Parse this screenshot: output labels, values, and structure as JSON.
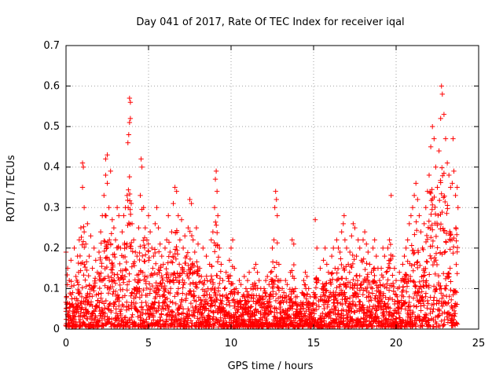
{
  "chart_data": {
    "type": "scatter",
    "title": "Day 041 of 2017, Rate Of TEC Index for receiver iqal",
    "xlabel": "GPS time / hours",
    "ylabel": "ROTI / TECUs",
    "xlim": [
      0,
      25
    ],
    "ylim": [
      0,
      0.7
    ],
    "xticks": [
      0,
      5,
      10,
      15,
      20,
      25
    ],
    "yticks": [
      0,
      0.1,
      0.2,
      0.3,
      0.4,
      0.5,
      0.6,
      0.7
    ],
    "xtick_labels": [
      "0",
      "5",
      "10",
      "15",
      "20",
      "25"
    ],
    "ytick_labels": [
      "0",
      "0.1",
      "0.2",
      "0.3",
      "0.4",
      "0.5",
      "0.6",
      "0.7"
    ],
    "grid": true,
    "marker": "plus",
    "series_color": "#ff0000",
    "points": [
      [
        0.0,
        0.19
      ],
      [
        0.1,
        0.15
      ],
      [
        0.2,
        0.12
      ],
      [
        0.3,
        0.17
      ],
      [
        0.4,
        0.09
      ],
      [
        0.5,
        0.2
      ],
      [
        0.6,
        0.13
      ],
      [
        0.7,
        0.18
      ],
      [
        0.8,
        0.22
      ],
      [
        0.9,
        0.25
      ],
      [
        1.0,
        0.35
      ],
      [
        1.0,
        0.41
      ],
      [
        1.05,
        0.4
      ],
      [
        1.1,
        0.3
      ],
      [
        1.1,
        0.24
      ],
      [
        1.2,
        0.21
      ],
      [
        1.3,
        0.26
      ],
      [
        1.4,
        0.18
      ],
      [
        1.5,
        0.23
      ],
      [
        1.6,
        0.15
      ],
      [
        1.7,
        0.2
      ],
      [
        1.8,
        0.17
      ],
      [
        1.9,
        0.14
      ],
      [
        2.0,
        0.19
      ],
      [
        2.1,
        0.24
      ],
      [
        2.2,
        0.28
      ],
      [
        2.3,
        0.33
      ],
      [
        2.4,
        0.38
      ],
      [
        2.4,
        0.42
      ],
      [
        2.5,
        0.43
      ],
      [
        2.5,
        0.36
      ],
      [
        2.6,
        0.3
      ],
      [
        2.7,
        0.39
      ],
      [
        2.8,
        0.27
      ],
      [
        2.9,
        0.25
      ],
      [
        3.0,
        0.22
      ],
      [
        3.1,
        0.3
      ],
      [
        3.2,
        0.28
      ],
      [
        3.3,
        0.2
      ],
      [
        3.4,
        0.24
      ],
      [
        3.5,
        0.28
      ],
      [
        3.6,
        0.3
      ],
      [
        3.7,
        0.33
      ],
      [
        3.75,
        0.46
      ],
      [
        3.8,
        0.48
      ],
      [
        3.85,
        0.51
      ],
      [
        3.85,
        0.57
      ],
      [
        3.9,
        0.56
      ],
      [
        3.9,
        0.52
      ],
      [
        3.95,
        0.31
      ],
      [
        4.0,
        0.26
      ],
      [
        4.1,
        0.22
      ],
      [
        4.2,
        0.19
      ],
      [
        4.3,
        0.18
      ],
      [
        4.4,
        0.25
      ],
      [
        4.5,
        0.33
      ],
      [
        4.55,
        0.42
      ],
      [
        4.6,
        0.4
      ],
      [
        4.7,
        0.3
      ],
      [
        4.8,
        0.25
      ],
      [
        4.9,
        0.22
      ],
      [
        5.0,
        0.28
      ],
      [
        5.1,
        0.24
      ],
      [
        5.2,
        0.2
      ],
      [
        5.3,
        0.18
      ],
      [
        5.4,
        0.26
      ],
      [
        5.5,
        0.3
      ],
      [
        5.6,
        0.25
      ],
      [
        5.7,
        0.21
      ],
      [
        5.8,
        0.18
      ],
      [
        5.9,
        0.16
      ],
      [
        6.0,
        0.2
      ],
      [
        6.1,
        0.22
      ],
      [
        6.2,
        0.28
      ],
      [
        6.3,
        0.19
      ],
      [
        6.4,
        0.24
      ],
      [
        6.5,
        0.31
      ],
      [
        6.6,
        0.35
      ],
      [
        6.7,
        0.34
      ],
      [
        6.8,
        0.28
      ],
      [
        6.9,
        0.22
      ],
      [
        7.0,
        0.27
      ],
      [
        7.1,
        0.2
      ],
      [
        7.2,
        0.23
      ],
      [
        7.3,
        0.18
      ],
      [
        7.4,
        0.25
      ],
      [
        7.5,
        0.32
      ],
      [
        7.6,
        0.31
      ],
      [
        7.7,
        0.22
      ],
      [
        7.8,
        0.19
      ],
      [
        7.9,
        0.25
      ],
      [
        8.0,
        0.21
      ],
      [
        8.1,
        0.15
      ],
      [
        8.2,
        0.13
      ],
      [
        8.3,
        0.2
      ],
      [
        8.4,
        0.12
      ],
      [
        8.5,
        0.18
      ],
      [
        8.6,
        0.1
      ],
      [
        8.7,
        0.16
      ],
      [
        8.8,
        0.22
      ],
      [
        8.9,
        0.24
      ],
      [
        9.0,
        0.3
      ],
      [
        9.05,
        0.37
      ],
      [
        9.1,
        0.39
      ],
      [
        9.15,
        0.34
      ],
      [
        9.2,
        0.28
      ],
      [
        9.3,
        0.2
      ],
      [
        9.4,
        0.16
      ],
      [
        9.5,
        0.12
      ],
      [
        9.6,
        0.1
      ],
      [
        9.7,
        0.14
      ],
      [
        9.8,
        0.13
      ],
      [
        9.9,
        0.17
      ],
      [
        10.0,
        0.2
      ],
      [
        10.1,
        0.22
      ],
      [
        10.2,
        0.15
      ],
      [
        10.3,
        0.1
      ],
      [
        10.4,
        0.09
      ],
      [
        10.5,
        0.12
      ],
      [
        10.6,
        0.11
      ],
      [
        10.7,
        0.08
      ],
      [
        10.8,
        0.13
      ],
      [
        10.9,
        0.1
      ],
      [
        11.0,
        0.12
      ],
      [
        11.1,
        0.14
      ],
      [
        11.2,
        0.1
      ],
      [
        11.3,
        0.11
      ],
      [
        11.4,
        0.15
      ],
      [
        11.5,
        0.16
      ],
      [
        11.6,
        0.14
      ],
      [
        11.7,
        0.12
      ],
      [
        11.8,
        0.1
      ],
      [
        11.9,
        0.08
      ],
      [
        12.0,
        0.1
      ],
      [
        12.1,
        0.12
      ],
      [
        12.2,
        0.13
      ],
      [
        12.3,
        0.11
      ],
      [
        12.4,
        0.14
      ],
      [
        12.5,
        0.2
      ],
      [
        12.6,
        0.22
      ],
      [
        12.65,
        0.3
      ],
      [
        12.7,
        0.34
      ],
      [
        12.75,
        0.32
      ],
      [
        12.8,
        0.28
      ],
      [
        12.9,
        0.16
      ],
      [
        13.0,
        0.12
      ],
      [
        13.1,
        0.1
      ],
      [
        13.2,
        0.09
      ],
      [
        13.3,
        0.12
      ],
      [
        13.4,
        0.11
      ],
      [
        13.5,
        0.08
      ],
      [
        13.6,
        0.14
      ],
      [
        13.7,
        0.22
      ],
      [
        13.8,
        0.21
      ],
      [
        13.9,
        0.1
      ],
      [
        14.0,
        0.08
      ],
      [
        14.1,
        0.06
      ],
      [
        14.2,
        0.05
      ],
      [
        14.3,
        0.09
      ],
      [
        14.4,
        0.12
      ],
      [
        14.5,
        0.14
      ],
      [
        14.6,
        0.13
      ],
      [
        14.7,
        0.1
      ],
      [
        14.8,
        0.08
      ],
      [
        14.9,
        0.06
      ],
      [
        15.0,
        0.09
      ],
      [
        15.1,
        0.27
      ],
      [
        15.2,
        0.2
      ],
      [
        15.3,
        0.12
      ],
      [
        15.4,
        0.15
      ],
      [
        15.5,
        0.1
      ],
      [
        15.6,
        0.17
      ],
      [
        15.7,
        0.2
      ],
      [
        15.8,
        0.16
      ],
      [
        15.9,
        0.14
      ],
      [
        16.0,
        0.12
      ],
      [
        16.1,
        0.18
      ],
      [
        16.2,
        0.2
      ],
      [
        16.3,
        0.15
      ],
      [
        16.4,
        0.22
      ],
      [
        16.5,
        0.2
      ],
      [
        16.6,
        0.19
      ],
      [
        16.7,
        0.24
      ],
      [
        16.8,
        0.26
      ],
      [
        16.85,
        0.28
      ],
      [
        16.9,
        0.22
      ],
      [
        17.0,
        0.2
      ],
      [
        17.1,
        0.16
      ],
      [
        17.2,
        0.19
      ],
      [
        17.3,
        0.23
      ],
      [
        17.4,
        0.26
      ],
      [
        17.5,
        0.25
      ],
      [
        17.6,
        0.18
      ],
      [
        17.7,
        0.22
      ],
      [
        17.8,
        0.2
      ],
      [
        17.9,
        0.17
      ],
      [
        18.0,
        0.22
      ],
      [
        18.1,
        0.24
      ],
      [
        18.2,
        0.21
      ],
      [
        18.3,
        0.19
      ],
      [
        18.4,
        0.16
      ],
      [
        18.5,
        0.14
      ],
      [
        18.6,
        0.2
      ],
      [
        18.7,
        0.22
      ],
      [
        18.8,
        0.18
      ],
      [
        18.9,
        0.15
      ],
      [
        19.0,
        0.12
      ],
      [
        19.1,
        0.15
      ],
      [
        19.2,
        0.2
      ],
      [
        19.3,
        0.18
      ],
      [
        19.4,
        0.14
      ],
      [
        19.5,
        0.2
      ],
      [
        19.6,
        0.22
      ],
      [
        19.7,
        0.33
      ],
      [
        19.8,
        0.18
      ],
      [
        19.9,
        0.15
      ],
      [
        20.0,
        0.12
      ],
      [
        20.1,
        0.1
      ],
      [
        20.2,
        0.14
      ],
      [
        20.3,
        0.12
      ],
      [
        20.4,
        0.16
      ],
      [
        20.5,
        0.18
      ],
      [
        20.6,
        0.2
      ],
      [
        20.7,
        0.22
      ],
      [
        20.8,
        0.26
      ],
      [
        20.9,
        0.28
      ],
      [
        21.0,
        0.3
      ],
      [
        21.1,
        0.33
      ],
      [
        21.2,
        0.36
      ],
      [
        21.3,
        0.32
      ],
      [
        21.4,
        0.28
      ],
      [
        21.5,
        0.24
      ],
      [
        21.6,
        0.2
      ],
      [
        21.7,
        0.26
      ],
      [
        21.8,
        0.3
      ],
      [
        21.9,
        0.34
      ],
      [
        22.0,
        0.38
      ],
      [
        22.1,
        0.45
      ],
      [
        22.2,
        0.5
      ],
      [
        22.3,
        0.47
      ],
      [
        22.4,
        0.4
      ],
      [
        22.5,
        0.35
      ],
      [
        22.6,
        0.44
      ],
      [
        22.7,
        0.52
      ],
      [
        22.75,
        0.6
      ],
      [
        22.8,
        0.58
      ],
      [
        22.9,
        0.53
      ],
      [
        23.0,
        0.47
      ],
      [
        23.1,
        0.41
      ],
      [
        23.2,
        0.38
      ],
      [
        23.3,
        0.35
      ],
      [
        23.4,
        0.36
      ],
      [
        23.45,
        0.47
      ],
      [
        23.5,
        0.39
      ],
      [
        23.6,
        0.33
      ],
      [
        23.7,
        0.35
      ],
      [
        23.75,
        0.3
      ]
    ]
  }
}
